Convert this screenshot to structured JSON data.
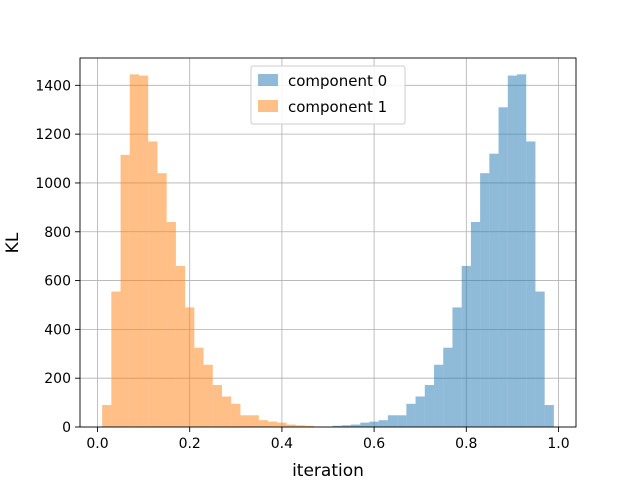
{
  "chart_data": {
    "type": "bar",
    "title": "",
    "xlabel": "iteration",
    "ylabel": "KL",
    "xlim": [
      -0.038,
      1.038
    ],
    "ylim": [
      0,
      1512
    ],
    "xticks": [
      0.0,
      0.2,
      0.4,
      0.6,
      0.8,
      1.0
    ],
    "xtick_labels": [
      "0.0",
      "0.2",
      "0.4",
      "0.6",
      "0.8",
      "1.0"
    ],
    "yticks": [
      0,
      200,
      400,
      600,
      800,
      1000,
      1200,
      1400
    ],
    "ytick_labels": [
      "0",
      "200",
      "400",
      "600",
      "800",
      "1000",
      "1200",
      "1400"
    ],
    "grid": true,
    "legend_position": "top-center",
    "series": [
      {
        "name": "component 0",
        "color": "#1f77b4",
        "opacity": 0.5,
        "bin_edges": [
          0.47,
          0.49,
          0.51,
          0.53,
          0.55,
          0.57,
          0.59,
          0.61,
          0.63,
          0.65,
          0.67,
          0.69,
          0.71,
          0.73,
          0.75,
          0.77,
          0.79,
          0.81,
          0.83,
          0.85,
          0.87,
          0.89,
          0.91,
          0.93,
          0.95,
          0.97,
          0.99
        ],
        "counts": [
          1,
          2,
          5,
          7,
          10,
          18,
          22,
          28,
          48,
          48,
          95,
          125,
          172,
          255,
          325,
          490,
          660,
          840,
          1040,
          1120,
          1310,
          1440,
          1445,
          1170,
          555,
          90
        ]
      },
      {
        "name": "component 1",
        "color": "#ff7f0e",
        "opacity": 0.5,
        "bin_edges": [
          0.01,
          0.03,
          0.05,
          0.07,
          0.09,
          0.11,
          0.13,
          0.15,
          0.17,
          0.19,
          0.21,
          0.23,
          0.25,
          0.27,
          0.29,
          0.31,
          0.33,
          0.35,
          0.37,
          0.39,
          0.41,
          0.43,
          0.45,
          0.47,
          0.49,
          0.51,
          0.53
        ],
        "counts": [
          90,
          555,
          1115,
          1445,
          1440,
          1170,
          1040,
          840,
          660,
          490,
          325,
          255,
          172,
          125,
          95,
          48,
          48,
          28,
          22,
          18,
          10,
          7,
          5,
          2,
          1,
          0
        ]
      }
    ]
  }
}
